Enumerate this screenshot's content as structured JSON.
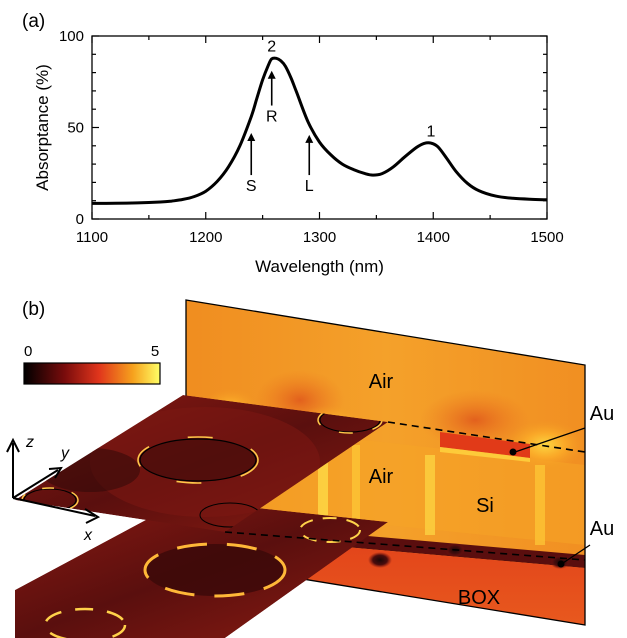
{
  "panel_a_label": "(a)",
  "panel_b_label": "(b)",
  "chart_data": {
    "type": "line",
    "xlabel": "Wavelength (nm)",
    "ylabel": "Absorptance (%)",
    "xlim": [
      1100,
      1500
    ],
    "ylim": [
      0,
      100
    ],
    "xticks": [
      1100,
      1200,
      1300,
      1400,
      1500
    ],
    "yticks": [
      0,
      50,
      100
    ],
    "grid": false,
    "x": [
      1100,
      1120,
      1140,
      1160,
      1170,
      1180,
      1190,
      1200,
      1210,
      1220,
      1230,
      1240,
      1245,
      1250,
      1255,
      1258,
      1262,
      1266,
      1270,
      1275,
      1280,
      1290,
      1300,
      1310,
      1320,
      1330,
      1340,
      1347,
      1355,
      1365,
      1375,
      1385,
      1392,
      1398,
      1404,
      1412,
      1420,
      1430,
      1440,
      1455,
      1470,
      1485,
      1500
    ],
    "y": [
      8.5,
      8.6,
      8.8,
      9.3,
      9.8,
      10.7,
      12.3,
      15.2,
      20.5,
      28.5,
      40,
      56,
      66,
      76,
      84,
      87.5,
      87.8,
      86.5,
      83.5,
      77,
      69,
      53,
      42,
      35,
      30,
      27,
      24.8,
      24,
      24.8,
      28.5,
      34,
      39,
      41.3,
      41.5,
      39.5,
      33,
      26,
      19.5,
      15.5,
      12.5,
      11.3,
      10.8,
      10.5
    ],
    "annotations": [
      {
        "text": "2",
        "x": 1258,
        "y": 91.5
      },
      {
        "text": "1",
        "x": 1398,
        "y": 45
      }
    ],
    "arrows": [
      {
        "label": "S",
        "x": 1240,
        "y_base": 24,
        "y_tip": 47
      },
      {
        "label": "R",
        "x": 1258,
        "y_base": 62,
        "y_tip": 81
      },
      {
        "label": "L",
        "x": 1291,
        "y_base": 24,
        "y_tip": 46
      }
    ]
  },
  "colorbar": {
    "min_label": "0",
    "max_label": "5"
  },
  "axis_labels": {
    "z": "z",
    "y": "y",
    "x": "x"
  },
  "region_labels": {
    "air_top": "Air",
    "air_mid": "Air",
    "si": "Si",
    "box": "BOX",
    "au_upper": "Au",
    "au_lower": "Au"
  },
  "colors": {
    "curve": "#000000",
    "field_high": "#ffe94a",
    "field_mid": "#f08a1c",
    "field_low": "#d7321b",
    "field_zero": "#1a0c0c"
  }
}
